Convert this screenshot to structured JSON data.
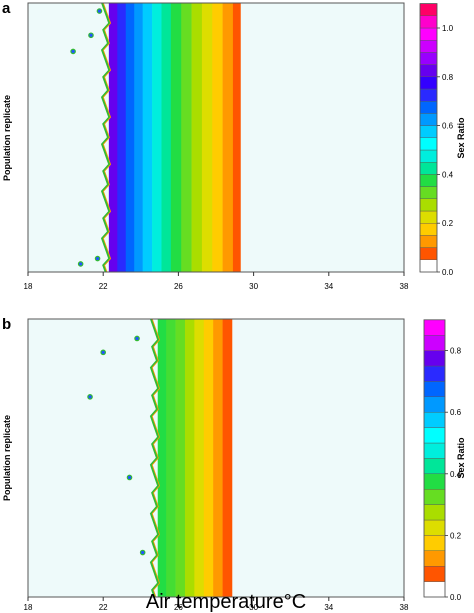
{
  "panels": {
    "a": {
      "letter": "a"
    },
    "b": {
      "letter": "b"
    }
  },
  "shared": {
    "xlabel": "Air temperature°C",
    "ylabel": "Population replicate",
    "colorbar_label": "Sex Ratio"
  },
  "chart_data": [
    {
      "type": "heatmap",
      "panel": "a",
      "xlabel": "",
      "ylabel": "Population replicate",
      "xlim": [
        18,
        38
      ],
      "x_ticks": [
        18,
        22,
        26,
        30,
        34,
        38
      ],
      "background_value": 0.0,
      "background_color": "#eefafa",
      "bands": [
        {
          "x0": 22.3,
          "x1": 22.75,
          "color": "#6600ee"
        },
        {
          "x0": 22.75,
          "x1": 23.2,
          "color": "#2a2aff"
        },
        {
          "x0": 23.2,
          "x1": 23.65,
          "color": "#0066ff"
        },
        {
          "x0": 23.65,
          "x1": 24.1,
          "color": "#0099ff"
        },
        {
          "x0": 24.1,
          "x1": 24.6,
          "color": "#00ccff"
        },
        {
          "x0": 24.6,
          "x1": 25.1,
          "color": "#00eedd"
        },
        {
          "x0": 25.1,
          "x1": 25.6,
          "color": "#00e699"
        },
        {
          "x0": 25.6,
          "x1": 26.15,
          "color": "#22dd44"
        },
        {
          "x0": 26.15,
          "x1": 26.7,
          "color": "#66dd22"
        },
        {
          "x0": 26.7,
          "x1": 27.25,
          "color": "#aadd00"
        },
        {
          "x0": 27.25,
          "x1": 27.8,
          "color": "#dddd00"
        },
        {
          "x0": 27.8,
          "x1": 28.35,
          "color": "#ffcc00"
        },
        {
          "x0": 28.35,
          "x1": 28.9,
          "color": "#ff9900"
        },
        {
          "x0": 28.9,
          "x1": 29.3,
          "color": "#ff5500"
        }
      ],
      "boundary_x": 22.3,
      "outlier_points": [
        {
          "x": 20.4,
          "y": 0.82
        },
        {
          "x": 21.35,
          "y": 0.88
        },
        {
          "x": 21.8,
          "y": 0.97
        },
        {
          "x": 20.8,
          "y": 0.03
        },
        {
          "x": 21.7,
          "y": 0.05
        }
      ],
      "colorbar": {
        "ticks": [
          0.0,
          0.2,
          0.4,
          0.6,
          0.8,
          1.0
        ],
        "levels": [
          "#ffffff",
          "#ff5500",
          "#ff9900",
          "#ffcc00",
          "#dddd00",
          "#aadd00",
          "#66dd22",
          "#22dd44",
          "#00e699",
          "#00eedd",
          "#00ffff",
          "#00ccff",
          "#0099ff",
          "#0066ff",
          "#2a2aff",
          "#3300ff",
          "#6600ee",
          "#9900ff",
          "#cc00ff",
          "#ff00ff",
          "#ff00cc",
          "#ff0066"
        ]
      }
    },
    {
      "type": "heatmap",
      "panel": "b",
      "xlabel": "Air temperature°C",
      "ylabel": "Population replicate",
      "xlim": [
        18,
        38
      ],
      "x_ticks": [
        18,
        22,
        26,
        30,
        34,
        38
      ],
      "background_value": 0.0,
      "background_color": "#eefafa",
      "bands": [
        {
          "x0": 24.9,
          "x1": 25.35,
          "color": "#22dd44"
        },
        {
          "x0": 25.35,
          "x1": 25.85,
          "color": "#44dd33"
        },
        {
          "x0": 25.85,
          "x1": 26.35,
          "color": "#66dd22"
        },
        {
          "x0": 26.35,
          "x1": 26.85,
          "color": "#aadd00"
        },
        {
          "x0": 26.85,
          "x1": 27.35,
          "color": "#dddd00"
        },
        {
          "x0": 27.35,
          "x1": 27.85,
          "color": "#ffcc00"
        },
        {
          "x0": 27.85,
          "x1": 28.35,
          "color": "#ff9900"
        },
        {
          "x0": 28.35,
          "x1": 28.85,
          "color": "#ff5500"
        }
      ],
      "boundary_x": 24.9,
      "outlier_points": [
        {
          "x": 22.0,
          "y": 0.88
        },
        {
          "x": 21.3,
          "y": 0.72
        },
        {
          "x": 23.4,
          "y": 0.43
        },
        {
          "x": 23.8,
          "y": 0.93
        },
        {
          "x": 24.1,
          "y": 0.16
        }
      ],
      "colorbar": {
        "ticks": [
          0.0,
          0.2,
          0.4,
          0.6,
          0.8
        ],
        "levels": [
          "#ffffff",
          "#ff5500",
          "#ff9900",
          "#ffcc00",
          "#dddd00",
          "#aadd00",
          "#66dd22",
          "#22dd44",
          "#00e699",
          "#00eedd",
          "#00ffff",
          "#00ccff",
          "#0099ff",
          "#0066ff",
          "#2a2aff",
          "#6600ee",
          "#cc00ff",
          "#ff00ff"
        ]
      }
    }
  ]
}
